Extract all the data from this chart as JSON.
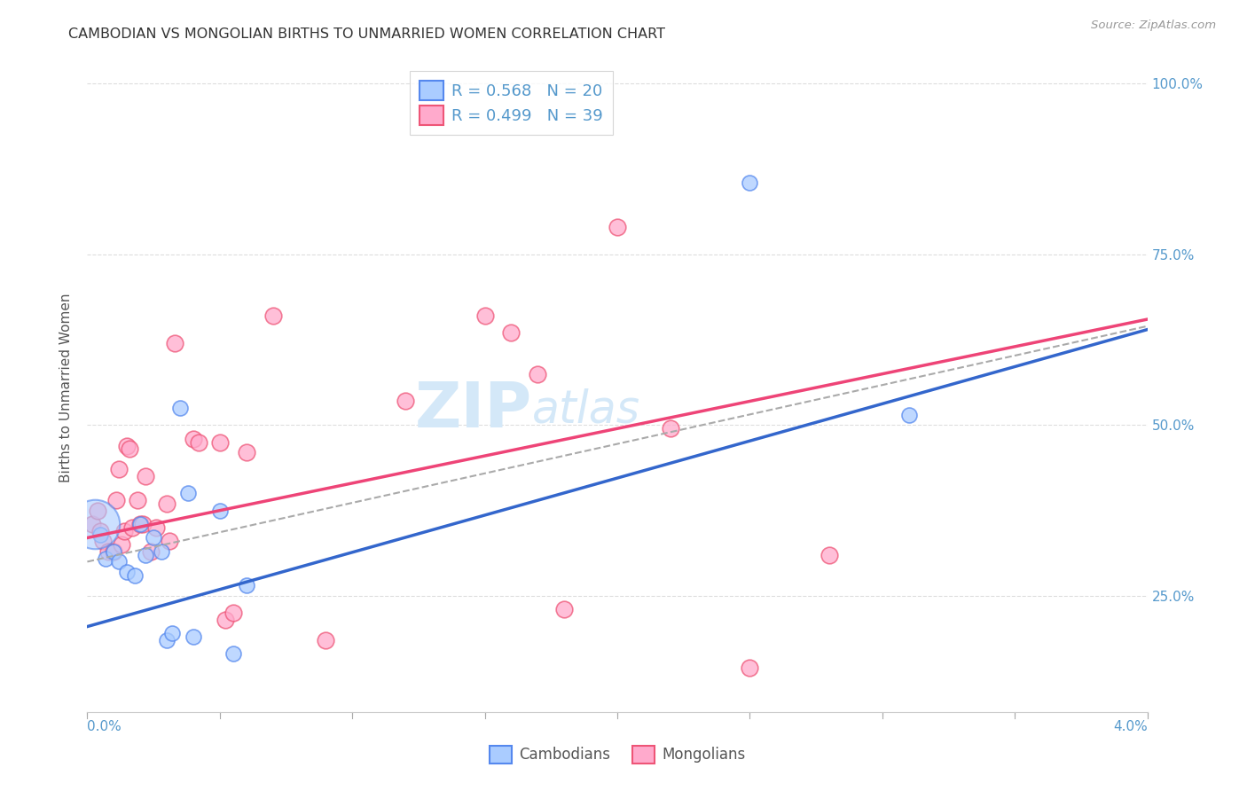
{
  "title": "CAMBODIAN VS MONGOLIAN BIRTHS TO UNMARRIED WOMEN CORRELATION CHART",
  "source": "Source: ZipAtlas.com",
  "ylabel": "Births to Unmarried Women",
  "xmin": 0.0,
  "xmax": 0.04,
  "ymin": 0.08,
  "ymax": 1.03,
  "yticks": [
    0.25,
    0.5,
    0.75,
    1.0
  ],
  "ytick_labels": [
    "25.0%",
    "50.0%",
    "75.0%",
    "100.0%"
  ],
  "axis_label_color": "#5599cc",
  "title_color": "#333333",
  "grid_color": "#dddddd",
  "watermark_color": "#d4e8f8",
  "watermark_text": "ZIPatlas",
  "cambodian_face": "#aaccff",
  "cambodian_edge": "#5588ee",
  "mongolian_face": "#ffaacc",
  "mongolian_edge": "#ee5577",
  "blue_line_color": "#3366cc",
  "pink_line_color": "#ee4477",
  "dashed_line_color": "#aaaaaa",
  "cambodian_points": [
    [
      0.0005,
      0.34
    ],
    [
      0.0007,
      0.305
    ],
    [
      0.001,
      0.315
    ],
    [
      0.0012,
      0.3
    ],
    [
      0.0015,
      0.285
    ],
    [
      0.0018,
      0.28
    ],
    [
      0.002,
      0.355
    ],
    [
      0.0022,
      0.31
    ],
    [
      0.0025,
      0.335
    ],
    [
      0.0028,
      0.315
    ],
    [
      0.003,
      0.185
    ],
    [
      0.0032,
      0.195
    ],
    [
      0.0035,
      0.525
    ],
    [
      0.0038,
      0.4
    ],
    [
      0.004,
      0.19
    ],
    [
      0.005,
      0.375
    ],
    [
      0.0055,
      0.165
    ],
    [
      0.006,
      0.265
    ],
    [
      0.025,
      0.855
    ],
    [
      0.031,
      0.515
    ]
  ],
  "cambodian_sizes": [
    200,
    150,
    150,
    150,
    150,
    150,
    150,
    150,
    150,
    150,
    150,
    150,
    150,
    150,
    150,
    150,
    150,
    150,
    150,
    150
  ],
  "cambodian_large_bubble": [
    0.0003,
    0.355,
    1600
  ],
  "mongolian_points": [
    [
      0.0002,
      0.355
    ],
    [
      0.0004,
      0.375
    ],
    [
      0.0005,
      0.345
    ],
    [
      0.0006,
      0.33
    ],
    [
      0.0008,
      0.315
    ],
    [
      0.001,
      0.315
    ],
    [
      0.0011,
      0.39
    ],
    [
      0.0012,
      0.435
    ],
    [
      0.0013,
      0.325
    ],
    [
      0.0014,
      0.345
    ],
    [
      0.0015,
      0.47
    ],
    [
      0.0016,
      0.465
    ],
    [
      0.0017,
      0.35
    ],
    [
      0.0019,
      0.39
    ],
    [
      0.002,
      0.355
    ],
    [
      0.0021,
      0.355
    ],
    [
      0.0022,
      0.425
    ],
    [
      0.0024,
      0.315
    ],
    [
      0.0026,
      0.35
    ],
    [
      0.003,
      0.385
    ],
    [
      0.0031,
      0.33
    ],
    [
      0.0033,
      0.62
    ],
    [
      0.004,
      0.48
    ],
    [
      0.0042,
      0.475
    ],
    [
      0.005,
      0.475
    ],
    [
      0.0052,
      0.215
    ],
    [
      0.0055,
      0.225
    ],
    [
      0.006,
      0.46
    ],
    [
      0.007,
      0.66
    ],
    [
      0.009,
      0.185
    ],
    [
      0.012,
      0.535
    ],
    [
      0.015,
      0.66
    ],
    [
      0.016,
      0.635
    ],
    [
      0.017,
      0.575
    ],
    [
      0.018,
      0.23
    ],
    [
      0.02,
      0.79
    ],
    [
      0.022,
      0.495
    ],
    [
      0.025,
      0.145
    ],
    [
      0.028,
      0.31
    ]
  ],
  "blue_line": [
    [
      0.0,
      0.205
    ],
    [
      0.04,
      0.64
    ]
  ],
  "pink_line": [
    [
      0.0,
      0.335
    ],
    [
      0.04,
      0.655
    ]
  ],
  "dashed_line": [
    [
      0.0,
      0.3
    ],
    [
      0.04,
      0.645
    ]
  ],
  "title_fontsize": 11.5,
  "source_fontsize": 9.5,
  "tick_fontsize": 11,
  "legend_fontsize": 13,
  "watermark_fontsize": 52,
  "ylabel_fontsize": 11
}
